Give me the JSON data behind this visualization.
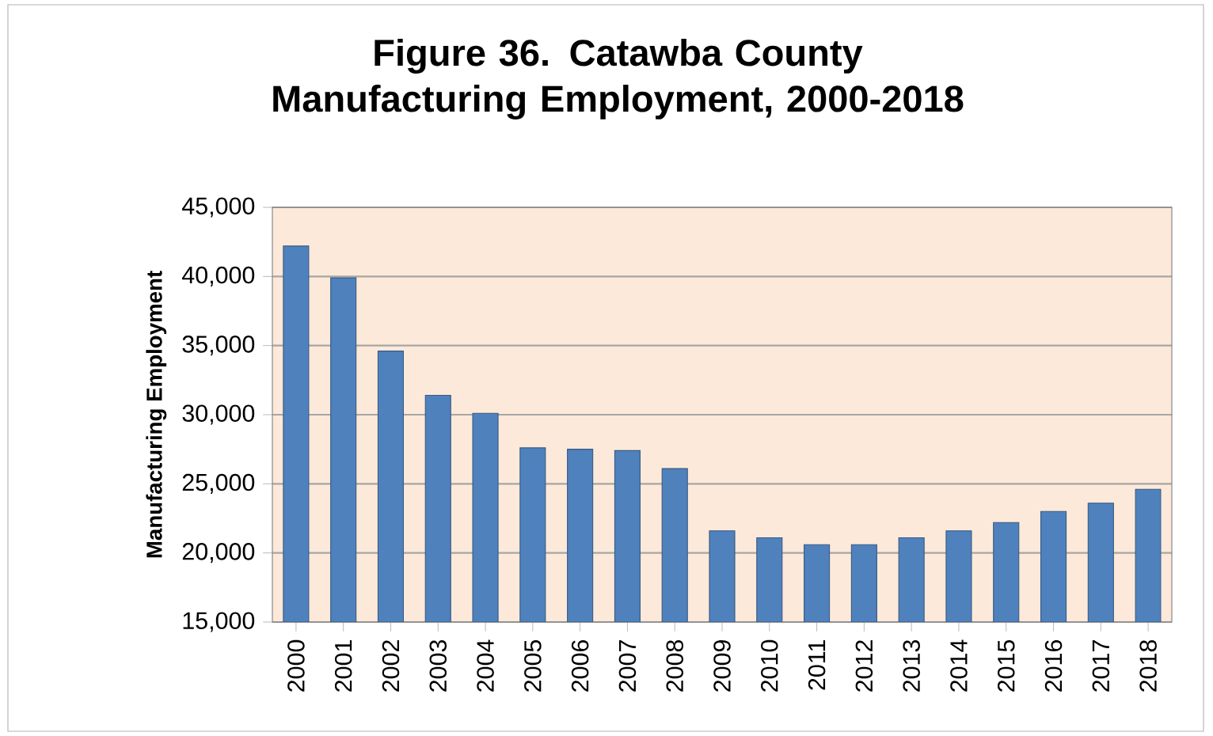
{
  "chart_data": {
    "type": "bar",
    "title": "Figure 36. Catawba County Manufacturing Employment, 2000-2018",
    "ylabel": "Manufacturing  Employment",
    "categories": [
      "2000",
      "2001",
      "2002",
      "2003",
      "2004",
      "2005",
      "2006",
      "2007",
      "2008",
      "2009",
      "2010",
      "2011",
      "2012",
      "2013",
      "2014",
      "2015",
      "2016",
      "2017",
      "2018"
    ],
    "values": [
      42200,
      39900,
      34600,
      31400,
      30100,
      27600,
      27500,
      27400,
      26100,
      21600,
      21100,
      20600,
      20600,
      21100,
      21600,
      22200,
      23000,
      23600,
      24600
    ],
    "color": "#4f81bd",
    "ylim": [
      15000,
      45000
    ],
    "yticks": [
      {
        "value": 15000,
        "label": "15,000"
      },
      {
        "value": 20000,
        "label": "20,000"
      },
      {
        "value": 25000,
        "label": "25,000"
      },
      {
        "value": 30000,
        "label": "30,000"
      },
      {
        "value": 35000,
        "label": "35,000"
      },
      {
        "value": 40000,
        "label": "40,000"
      },
      {
        "value": 45000,
        "label": "45,000"
      }
    ],
    "grid": "y"
  }
}
